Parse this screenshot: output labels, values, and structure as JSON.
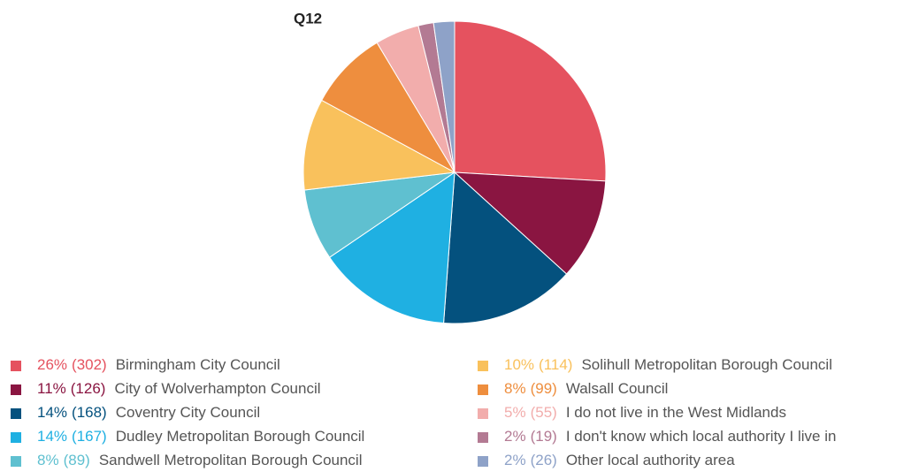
{
  "chart_data": {
    "type": "pie",
    "title": "Q12",
    "categories": [
      "Birmingham City Council",
      "City of Wolverhampton Council",
      "Coventry City Council",
      "Dudley Metropolitan Borough Council",
      "Sandwell Metropolitan Borough Council",
      "Solihull Metropolitan Borough Council",
      "Walsall Council",
      "I do not live in the West Midlands",
      "I don't know which local authority I live in",
      "Other local authority area"
    ],
    "values": [
      26,
      11,
      14,
      14,
      8,
      10,
      8,
      5,
      2,
      2
    ],
    "value_labels": [
      "26%",
      "11%",
      "14%",
      "14%",
      "8%",
      "10%",
      "8%",
      "5%",
      "2%",
      "2%"
    ],
    "counts": [
      302,
      126,
      168,
      167,
      89,
      114,
      99,
      55,
      19,
      26
    ],
    "count_labels": [
      "(302)",
      "(126)",
      "(168)",
      "(167)",
      "(89)",
      "(114)",
      "(99)",
      "(55)",
      "(19)",
      "(26)"
    ],
    "colors": [
      "#e5525f",
      "#8a1541",
      "#04517e",
      "#1fb0e2",
      "#5fc0d0",
      "#f9c15c",
      "#ee8e3e",
      "#f2adac",
      "#b37a93",
      "#8ea2c8"
    ]
  }
}
